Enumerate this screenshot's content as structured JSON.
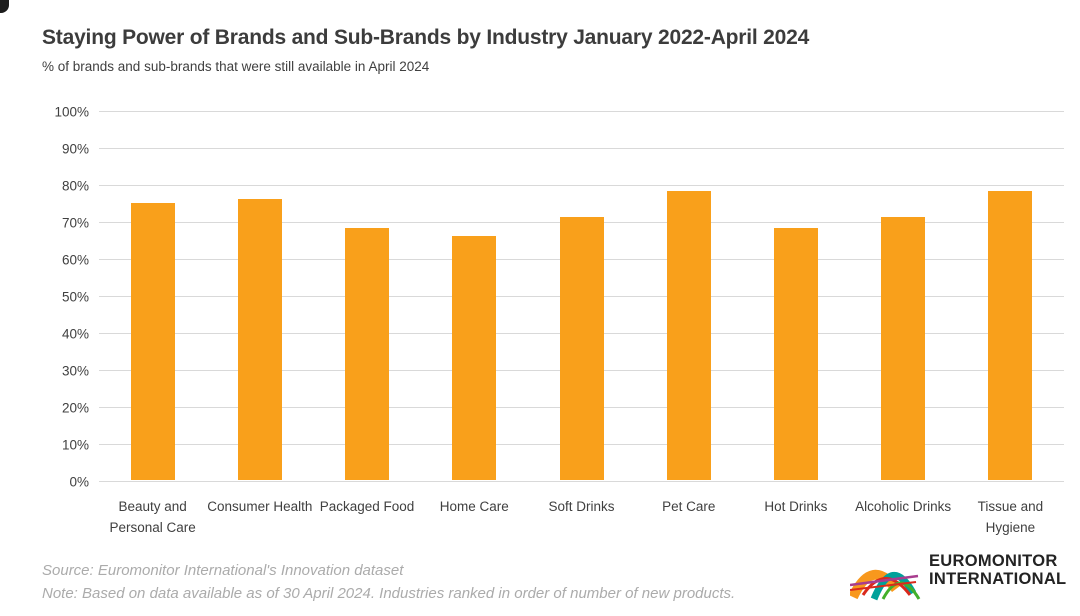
{
  "header": {
    "title": "Staying Power of Brands and Sub-Brands by Industry January 2022-April 2024",
    "subtitle": "% of brands and sub-brands that were still available in April 2024"
  },
  "chart_data": {
    "type": "bar",
    "title": "Staying Power of Brands and Sub-Brands by Industry January 2022-April 2024",
    "subtitle": "% of brands and sub-brands that were still available in April 2024",
    "categories": [
      "Beauty and Personal Care",
      "Consumer Health",
      "Packaged Food",
      "Home Care",
      "Soft Drinks",
      "Pet Care",
      "Hot Drinks",
      "Alcoholic Drinks",
      "Tissue and Hygiene"
    ],
    "values": [
      75,
      76,
      68,
      66,
      71,
      78,
      68,
      71,
      78
    ],
    "xlabel": "",
    "ylabel": "",
    "ylim": [
      0,
      100
    ],
    "ytick_labels": [
      "0%",
      "10%",
      "20%",
      "30%",
      "40%",
      "50%",
      "60%",
      "70%",
      "80%",
      "90%",
      "100%"
    ],
    "grid": true,
    "legend": "none",
    "bar_color": "#F9A01B",
    "gridline_color": "#D9D9D9",
    "axis_text_color": "#404040"
  },
  "footer": {
    "source": "Source: Euromonitor International's Innovation dataset",
    "note": "Note: Based on data available as of 30 April 2024. Industries ranked in order of number of new products.",
    "logo": {
      "line1": "EUROMONITOR",
      "line2": "INTERNATIONAL",
      "arc_colors": {
        "orange": "#F8981D",
        "teal": "#00A19A",
        "red": "#DA291C",
        "green": "#43B02A",
        "magenta": "#A83D8E"
      }
    }
  }
}
